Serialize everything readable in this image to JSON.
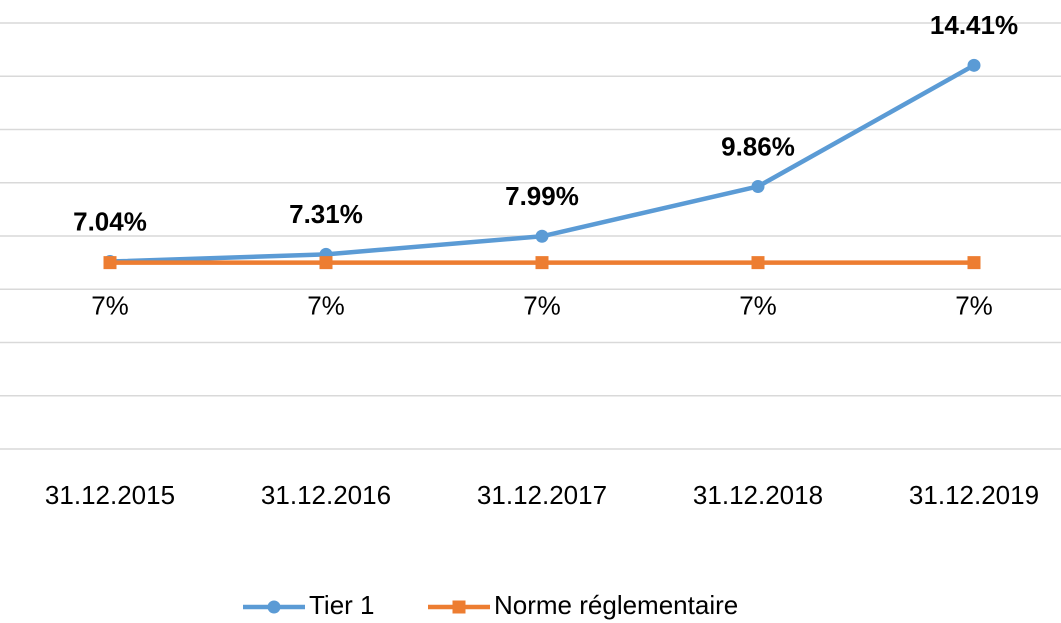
{
  "chart_data": {
    "type": "line",
    "categories": [
      "31.12.2015",
      "31.12.2016",
      "31.12.2017",
      "31.12.2018",
      "31.12.2019"
    ],
    "series": [
      {
        "name": "Tier 1",
        "color": "#5b9bd5",
        "values": [
          7.04,
          7.31,
          7.99,
          9.86,
          14.41
        ],
        "value_labels": [
          "7.04%",
          "7.31%",
          "7.99%",
          "9.86%",
          "14.41%"
        ]
      },
      {
        "name": "Norme réglementaire",
        "color": "#ed7d31",
        "values": [
          7,
          7,
          7,
          7,
          7
        ],
        "value_labels": [
          "7%",
          "7%",
          "7%",
          "7%",
          "7%"
        ]
      }
    ],
    "ylim": [
      0,
      16
    ],
    "yticks": [
      0,
      2,
      4,
      6,
      8,
      10,
      12,
      14,
      16
    ],
    "grid": true,
    "legend": "bottom"
  }
}
